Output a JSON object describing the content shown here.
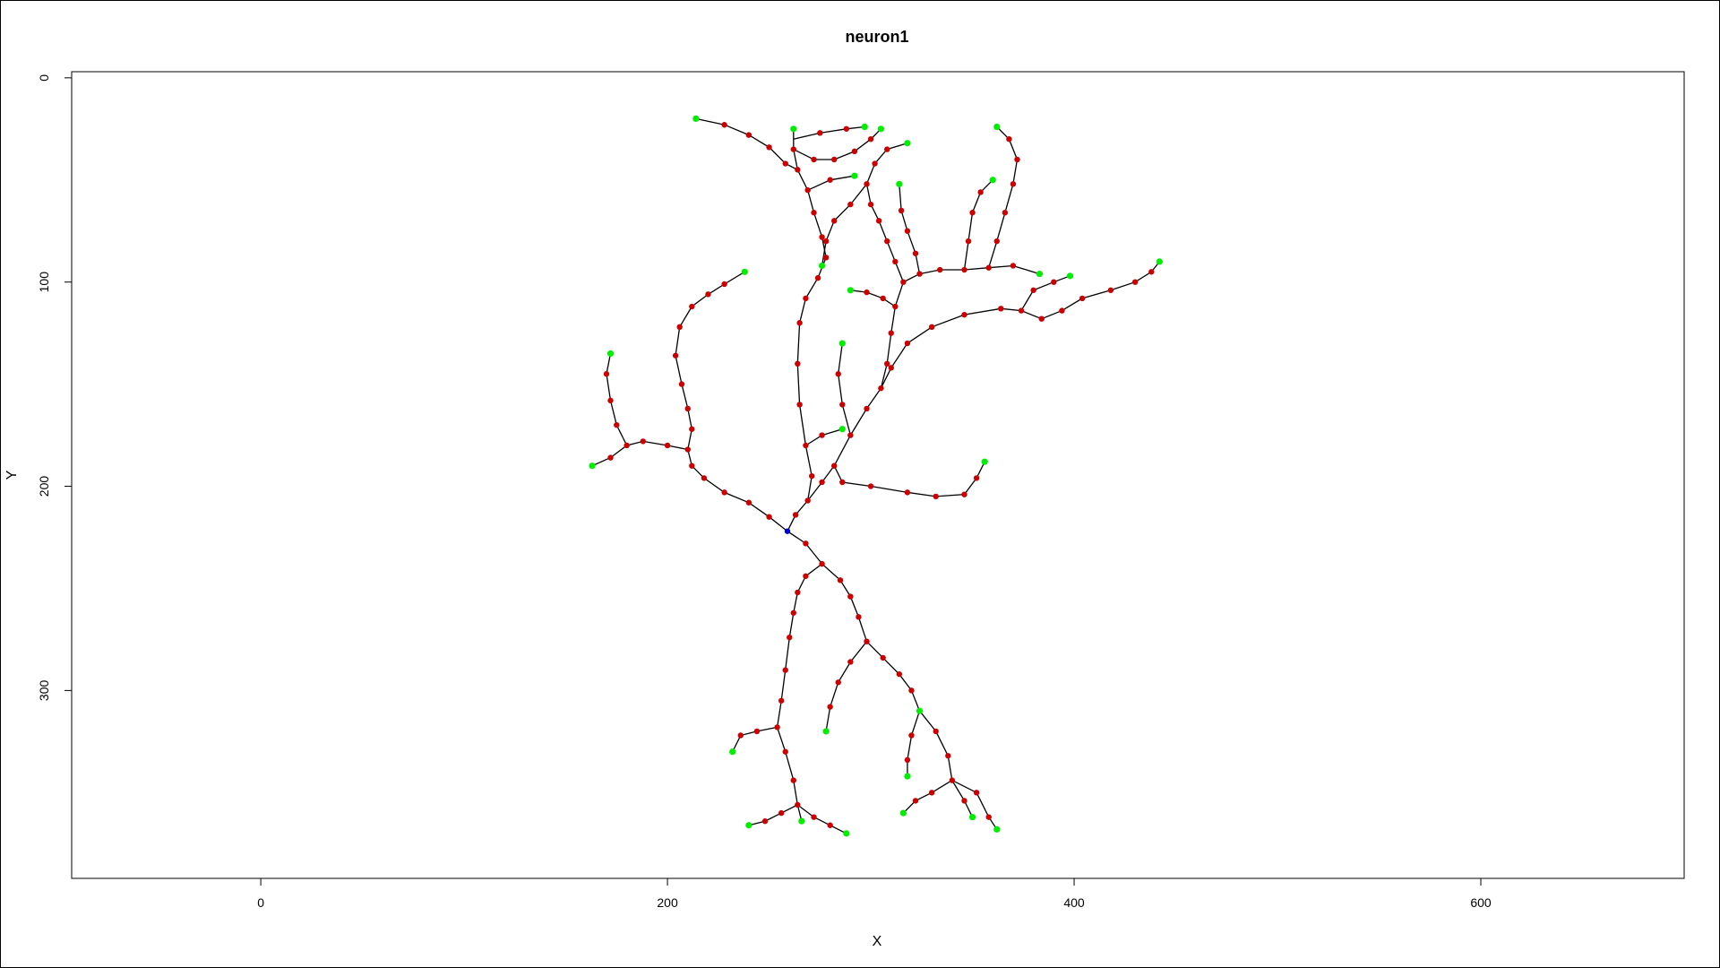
{
  "chart_data": {
    "type": "scatter",
    "title": "neuron1",
    "xlabel": "X",
    "ylabel": "Y",
    "xlim": [
      -93,
      700
    ],
    "ylim": [
      392,
      -3
    ],
    "y_reversed": true,
    "x_ticks": [
      0,
      200,
      400,
      600
    ],
    "x_tick_labels": [
      "0",
      "200",
      "400",
      "600"
    ],
    "y_ticks": [
      0,
      100,
      200,
      300
    ],
    "y_tick_labels": [
      "0",
      "100",
      "200",
      "300"
    ],
    "grid": false,
    "legend": "none",
    "colors": {
      "skeleton": "#000000",
      "branch_point": "#cc0000",
      "end_point": "#00ee00",
      "soma": "#0000cc"
    },
    "soma": {
      "x": 259,
      "y": 222
    },
    "branches": [
      [
        [
          259,
          222
        ],
        [
          263,
          214
        ],
        [
          269,
          207
        ],
        [
          271,
          195
        ],
        [
          268,
          180
        ],
        [
          265,
          160
        ],
        [
          264,
          140
        ],
        [
          265,
          120
        ],
        [
          268,
          108
        ],
        [
          274,
          98
        ],
        [
          278,
          88
        ],
        [
          276,
          78
        ],
        [
          272,
          66
        ],
        [
          269,
          55
        ],
        [
          264,
          45
        ],
        [
          262,
          35
        ],
        [
          262,
          25
        ]
      ],
      [
        [
          264,
          45
        ],
        [
          258,
          42
        ],
        [
          250,
          34
        ],
        [
          240,
          28
        ],
        [
          228,
          23
        ],
        [
          214,
          20
        ]
      ],
      [
        [
          262,
          30
        ],
        [
          275,
          27
        ],
        [
          288,
          25
        ],
        [
          297,
          24
        ]
      ],
      [
        [
          262,
          35
        ],
        [
          272,
          40
        ],
        [
          282,
          40
        ],
        [
          292,
          36
        ],
        [
          300,
          30
        ],
        [
          305,
          25
        ]
      ],
      [
        [
          269,
          55
        ],
        [
          280,
          50
        ],
        [
          292,
          48
        ]
      ],
      [
        [
          259,
          222
        ],
        [
          250,
          215
        ],
        [
          240,
          208
        ],
        [
          228,
          203
        ],
        [
          218,
          196
        ],
        [
          212,
          190
        ],
        [
          210,
          182
        ],
        [
          212,
          172
        ],
        [
          210,
          162
        ],
        [
          207,
          150
        ],
        [
          204,
          136
        ],
        [
          206,
          122
        ],
        [
          212,
          112
        ],
        [
          220,
          106
        ],
        [
          228,
          101
        ],
        [
          238,
          95
        ]
      ],
      [
        [
          210,
          182
        ],
        [
          200,
          180
        ],
        [
          188,
          178
        ],
        [
          180,
          180
        ],
        [
          172,
          186
        ],
        [
          163,
          190
        ]
      ],
      [
        [
          180,
          180
        ],
        [
          175,
          170
        ],
        [
          172,
          158
        ],
        [
          170,
          145
        ],
        [
          172,
          135
        ]
      ],
      [
        [
          269,
          207
        ],
        [
          276,
          198
        ],
        [
          282,
          190
        ],
        [
          290,
          175
        ],
        [
          298,
          162
        ],
        [
          305,
          152
        ],
        [
          310,
          142
        ],
        [
          318,
          130
        ],
        [
          330,
          122
        ],
        [
          346,
          116
        ],
        [
          364,
          113
        ],
        [
          374,
          114
        ],
        [
          384,
          118
        ],
        [
          394,
          114
        ],
        [
          404,
          108
        ],
        [
          418,
          104
        ],
        [
          430,
          100
        ],
        [
          438,
          95
        ],
        [
          442,
          90
        ]
      ],
      [
        [
          374,
          114
        ],
        [
          380,
          104
        ],
        [
          390,
          100
        ],
        [
          398,
          97
        ]
      ],
      [
        [
          305,
          152
        ],
        [
          308,
          140
        ],
        [
          310,
          125
        ],
        [
          312,
          112
        ],
        [
          316,
          100
        ],
        [
          312,
          90
        ],
        [
          308,
          80
        ],
        [
          304,
          70
        ],
        [
          300,
          62
        ],
        [
          298,
          52
        ],
        [
          302,
          42
        ],
        [
          308,
          35
        ],
        [
          318,
          32
        ]
      ],
      [
        [
          312,
          112
        ],
        [
          306,
          108
        ],
        [
          298,
          105
        ],
        [
          290,
          104
        ]
      ],
      [
        [
          298,
          52
        ],
        [
          290,
          62
        ],
        [
          282,
          70
        ],
        [
          278,
          80
        ],
        [
          276,
          92
        ]
      ],
      [
        [
          316,
          100
        ],
        [
          324,
          96
        ],
        [
          334,
          94
        ],
        [
          346,
          94
        ],
        [
          358,
          93
        ],
        [
          370,
          92
        ],
        [
          383,
          96
        ]
      ],
      [
        [
          346,
          94
        ],
        [
          348,
          80
        ],
        [
          350,
          66
        ],
        [
          354,
          56
        ],
        [
          360,
          50
        ]
      ],
      [
        [
          358,
          93
        ],
        [
          362,
          80
        ],
        [
          366,
          66
        ],
        [
          370,
          52
        ],
        [
          372,
          40
        ],
        [
          368,
          30
        ],
        [
          362,
          24
        ]
      ],
      [
        [
          324,
          96
        ],
        [
          322,
          86
        ],
        [
          318,
          75
        ],
        [
          315,
          65
        ],
        [
          314,
          52
        ]
      ],
      [
        [
          268,
          180
        ],
        [
          276,
          175
        ],
        [
          286,
          172
        ]
      ],
      [
        [
          290,
          175
        ],
        [
          286,
          160
        ],
        [
          284,
          145
        ],
        [
          286,
          130
        ]
      ],
      [
        [
          282,
          190
        ],
        [
          286,
          198
        ],
        [
          300,
          200
        ],
        [
          318,
          203
        ],
        [
          332,
          205
        ],
        [
          346,
          204
        ],
        [
          352,
          196
        ],
        [
          356,
          188
        ]
      ],
      [
        [
          259,
          222
        ],
        [
          268,
          228
        ],
        [
          276,
          238
        ],
        [
          285,
          246
        ],
        [
          290,
          254
        ],
        [
          294,
          264
        ],
        [
          298,
          276
        ],
        [
          306,
          284
        ],
        [
          314,
          292
        ],
        [
          320,
          300
        ],
        [
          324,
          310
        ]
      ],
      [
        [
          276,
          238
        ],
        [
          268,
          244
        ],
        [
          264,
          252
        ],
        [
          262,
          262
        ],
        [
          260,
          274
        ],
        [
          258,
          290
        ],
        [
          256,
          305
        ],
        [
          254,
          318
        ],
        [
          258,
          330
        ],
        [
          262,
          344
        ],
        [
          264,
          356
        ],
        [
          266,
          364
        ]
      ],
      [
        [
          254,
          318
        ],
        [
          244,
          320
        ],
        [
          236,
          322
        ],
        [
          232,
          330
        ]
      ],
      [
        [
          298,
          276
        ],
        [
          290,
          286
        ],
        [
          284,
          296
        ],
        [
          280,
          308
        ],
        [
          278,
          320
        ]
      ],
      [
        [
          324,
          310
        ],
        [
          320,
          322
        ],
        [
          318,
          334
        ],
        [
          318,
          342
        ]
      ],
      [
        [
          324,
          310
        ],
        [
          332,
          320
        ],
        [
          338,
          332
        ],
        [
          340,
          344
        ],
        [
          346,
          354
        ],
        [
          350,
          362
        ]
      ],
      [
        [
          264,
          356
        ],
        [
          272,
          362
        ],
        [
          280,
          366
        ],
        [
          288,
          370
        ]
      ],
      [
        [
          264,
          356
        ],
        [
          256,
          360
        ],
        [
          248,
          364
        ],
        [
          240,
          366
        ]
      ],
      [
        [
          340,
          344
        ],
        [
          330,
          350
        ],
        [
          322,
          354
        ],
        [
          316,
          360
        ]
      ],
      [
        [
          340,
          344
        ],
        [
          352,
          350
        ],
        [
          358,
          362
        ],
        [
          362,
          368
        ]
      ]
    ]
  }
}
